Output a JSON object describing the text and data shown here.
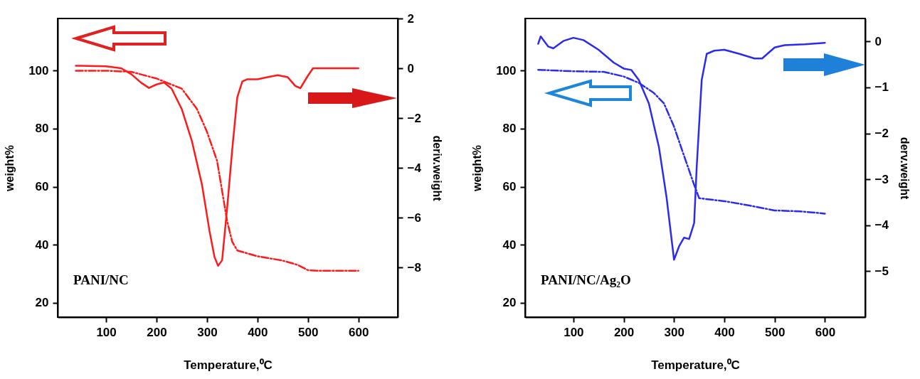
{
  "chart_data": [
    {
      "type": "line",
      "xlabel": "Temperature,⁰C",
      "ylabel": "weight%",
      "y2label": "deriv.weight",
      "annotations": [
        "PANI/NC"
      ],
      "xlim": [
        4,
        678
      ],
      "xticks": [
        100,
        200,
        300,
        400,
        500,
        600
      ],
      "ylim": [
        15,
        118
      ],
      "yticks": [
        20,
        40,
        60,
        80,
        100
      ],
      "y2lim": [
        -10,
        2
      ],
      "y2ticks": [
        -8,
        -6,
        -4,
        -2,
        0,
        2
      ],
      "grid": false,
      "series": [
        {
          "color": "#ff1a1a",
          "line_style": "dashed",
          "x": [
            40,
            100,
            150,
            200,
            250,
            280,
            300,
            320,
            340,
            350,
            360,
            400,
            450,
            480,
            500,
            520,
            600
          ],
          "values": [
            100,
            100,
            99.6,
            97.3,
            93.8,
            86.8,
            78.9,
            68.9,
            48,
            41,
            38,
            36,
            34.5,
            33,
            31.2,
            31,
            31
          ]
        },
        {
          "color": "#ff1a1a",
          "line_style": "solid",
          "axis": "y2",
          "x": [
            40,
            50,
            100,
            130,
            150,
            170,
            185,
            200,
            215,
            230,
            250,
            270,
            290,
            305,
            315,
            322,
            330,
            340,
            350,
            360,
            370,
            380,
            400,
            420,
            440,
            460,
            475,
            485,
            500,
            510,
            600
          ],
          "values": [
            0.1,
            0.1,
            0.08,
            0,
            -0.24,
            -0.59,
            -0.79,
            -0.65,
            -0.57,
            -0.82,
            -1.64,
            -2.92,
            -4.67,
            -6.54,
            -7.59,
            -7.94,
            -7.71,
            -5.6,
            -3.27,
            -1.17,
            -0.53,
            -0.44,
            -0.44,
            -0.36,
            -0.28,
            -0.36,
            -0.71,
            -0.8,
            -0.3,
            0,
            0
          ]
        }
      ]
    },
    {
      "type": "line",
      "xlabel": "Temperature,⁰C",
      "ylabel": "weight%",
      "y2label": "derv.weight",
      "annotations": [
        "PANI/NC/Ag₂O"
      ],
      "xlim": [
        4,
        680
      ],
      "xticks": [
        100,
        200,
        300,
        400,
        500,
        600
      ],
      "ylim": [
        15,
        118
      ],
      "yticks": [
        20,
        40,
        60,
        80,
        100
      ],
      "y2lim": [
        -6,
        0.5
      ],
      "y2ticks": [
        -5,
        -4,
        -3,
        -2,
        -1,
        0
      ],
      "grid": false,
      "series": [
        {
          "color": "#2b2bf0",
          "line_style": "dashed",
          "x": [
            30,
            100,
            160,
            200,
            230,
            260,
            280,
            300,
            320,
            340,
            350,
            400,
            450,
            500,
            550,
            600
          ],
          "values": [
            100.3,
            99.8,
            99.6,
            98,
            95.8,
            92.3,
            88.7,
            80.7,
            70.6,
            60.6,
            56,
            55,
            53.5,
            51.8,
            51.5,
            50.7
          ]
        },
        {
          "color": "#2b2bf0",
          "line_style": "solid",
          "axis": "y2",
          "x": [
            30,
            35,
            50,
            60,
            80,
            100,
            120,
            150,
            180,
            200,
            215,
            230,
            250,
            270,
            285,
            300,
            310,
            320,
            330,
            340,
            345,
            355,
            365,
            380,
            400,
            430,
            460,
            475,
            500,
            520,
            560,
            600
          ],
          "values": [
            -0.05,
            0.11,
            -0.11,
            -0.15,
            0.01,
            0.08,
            0.03,
            -0.18,
            -0.46,
            -0.59,
            -0.62,
            -0.84,
            -1.35,
            -2.3,
            -3.38,
            -4.75,
            -4.46,
            -4.27,
            -4.3,
            -3.95,
            -2.75,
            -0.84,
            -0.27,
            -0.2,
            -0.18,
            -0.27,
            -0.37,
            -0.37,
            -0.13,
            -0.08,
            -0.06,
            -0.03
          ]
        }
      ]
    }
  ]
}
